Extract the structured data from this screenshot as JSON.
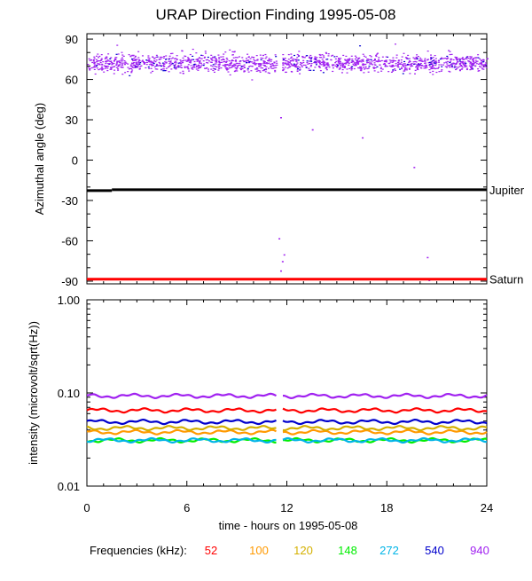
{
  "chart_data": [
    {
      "panel": "top",
      "type": "scatter",
      "title": "URAP Direction Finding  1995-05-08",
      "ylabel": "Azimuthal angle (deg)",
      "ylim": [
        -92,
        94
      ],
      "xlim": [
        0,
        24
      ],
      "yticks": [
        90,
        60,
        30,
        0,
        -30,
        -60,
        -90
      ],
      "yticklabels": [
        "90",
        "60",
        "30",
        "0",
        "-30",
        "-60",
        "-90"
      ],
      "reference_lines": [
        {
          "name": "Jupiter",
          "y": -22,
          "color": "#000000"
        },
        {
          "name": "Saturn",
          "y": -88.5,
          "color": "#ff0000"
        }
      ],
      "scatter_band": {
        "x_range": [
          0,
          24
        ],
        "y_range": [
          63,
          82
        ],
        "data_gap": [
          11.4,
          11.7
        ],
        "colors": [
          "#a020f0",
          "#0000d0"
        ]
      },
      "isolated_points": [
        {
          "x": 11.6,
          "y": 32
        },
        {
          "x": 13.5,
          "y": 23
        },
        {
          "x": 16.5,
          "y": 17
        },
        {
          "x": 19.6,
          "y": -5
        },
        {
          "x": 11.5,
          "y": -58
        },
        {
          "x": 11.8,
          "y": -70
        },
        {
          "x": 11.7,
          "y": -75
        },
        {
          "x": 11.6,
          "y": -82
        },
        {
          "x": 20.4,
          "y": -72
        },
        {
          "x": 20.5,
          "y": -89
        }
      ]
    },
    {
      "panel": "bottom",
      "type": "line",
      "ylabel": "intensity (microvolt/sqrt(Hz))",
      "xlabel": "time - hours on 1995-05-08",
      "yscale": "log",
      "ylim": [
        0.01,
        1.0
      ],
      "xlim": [
        0,
        24
      ],
      "xticks": [
        0,
        6,
        12,
        18,
        24
      ],
      "yticks": [
        1.0,
        0.1,
        0.01
      ],
      "yticklabels": [
        "1.00",
        "0.10",
        "0.01"
      ],
      "data_gap": [
        11.4,
        11.7
      ],
      "series": [
        {
          "name": "52",
          "color": "#ff0000",
          "level": 0.065
        },
        {
          "name": "100",
          "color": "#ff9900",
          "level": 0.038
        },
        {
          "name": "120",
          "color": "#d4b000",
          "level": 0.042
        },
        {
          "name": "148",
          "color": "#00ee00",
          "level": 0.031
        },
        {
          "name": "272",
          "color": "#00b4e6",
          "level": 0.031
        },
        {
          "name": "540",
          "color": "#0000cc",
          "level": 0.049
        },
        {
          "name": "940",
          "color": "#a020f0",
          "level": 0.093
        }
      ]
    }
  ],
  "legend": {
    "prefix": "Frequencies (kHz):"
  }
}
